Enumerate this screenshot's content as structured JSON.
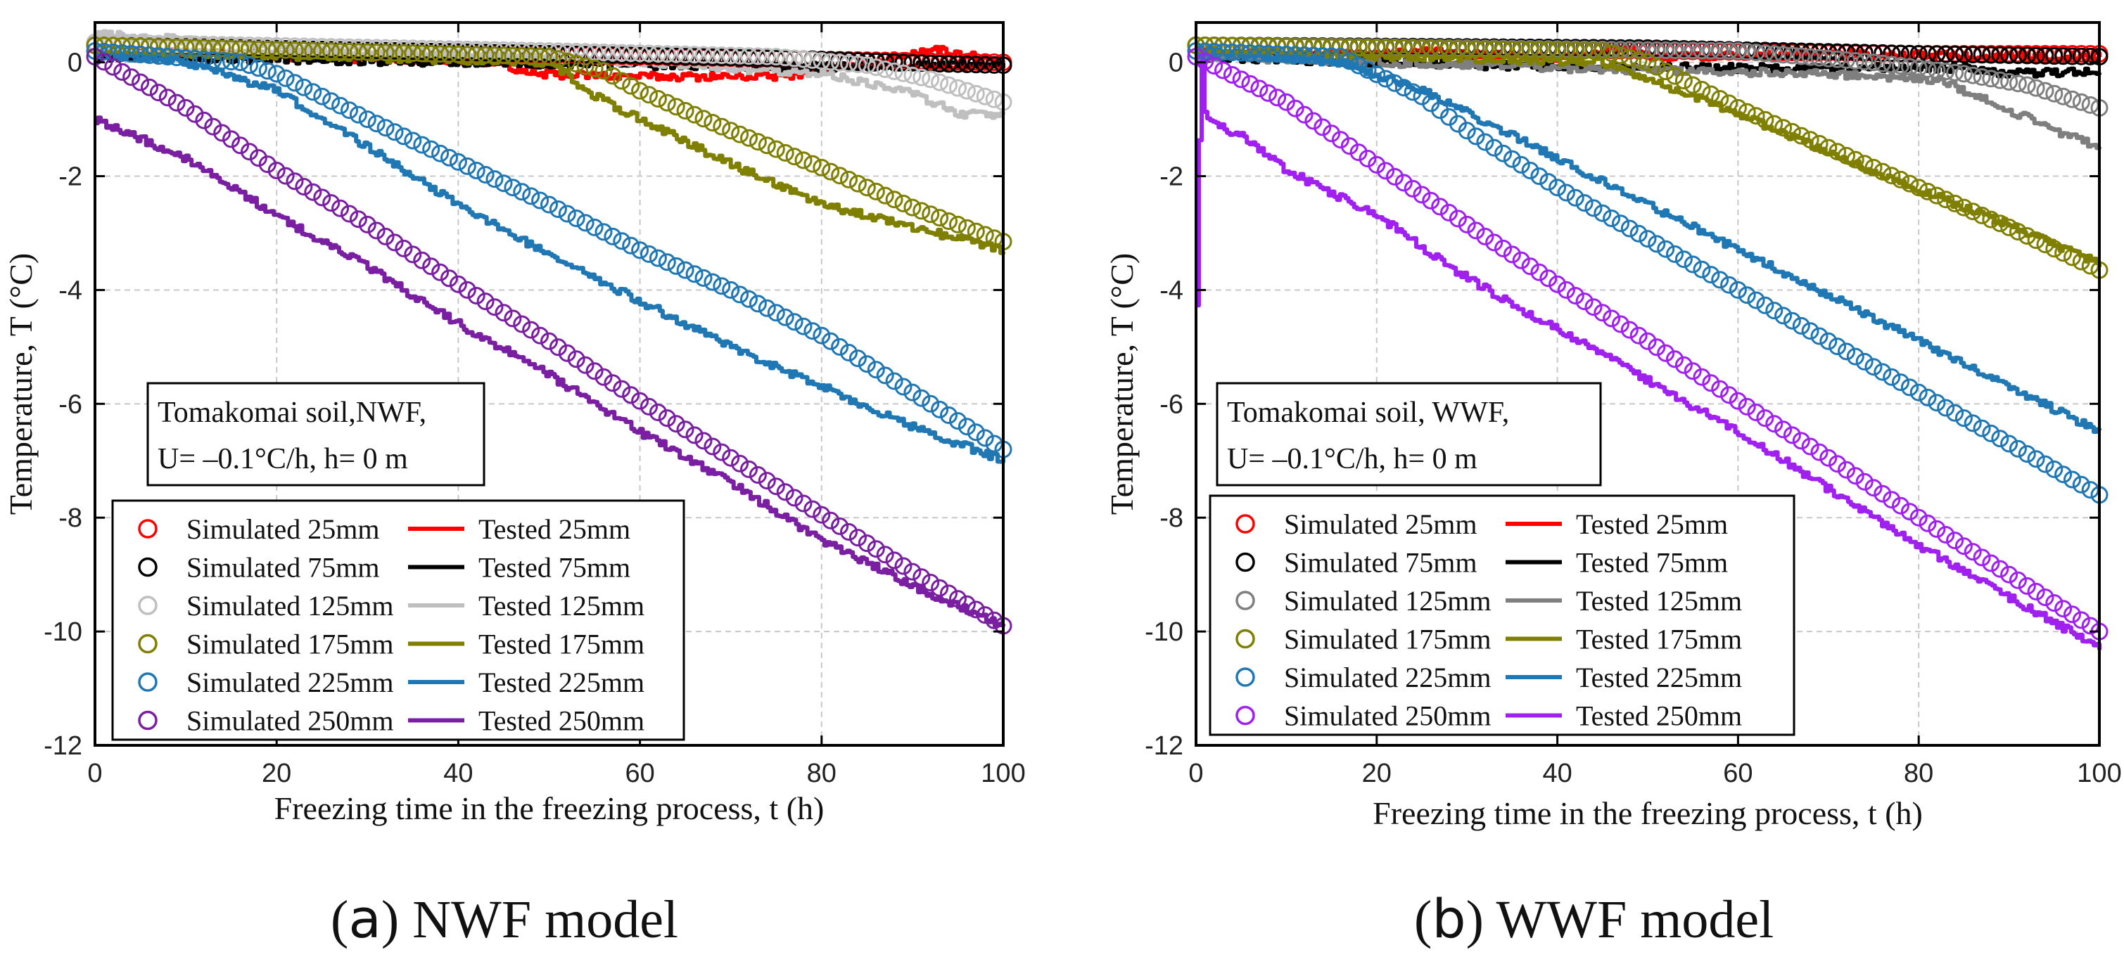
{
  "caption_a": {
    "letter": "a",
    "text": " NWF model"
  },
  "caption_b": {
    "letter": "b",
    "text": " WWF model"
  },
  "chart_data": [
    {
      "type": "line",
      "panel": "a",
      "xlabel": "Freezing time in the freezing process, t (h)",
      "ylabel": "Temperature, T (°C)",
      "xlim": [
        0,
        100
      ],
      "ylim": [
        -12,
        0.7
      ],
      "xticks": [
        0,
        20,
        40,
        60,
        80,
        100
      ],
      "yticks": [
        -12,
        -10,
        -8,
        -6,
        -4,
        -2,
        0
      ],
      "grid": true,
      "annotation": [
        "Tomakomai soil,NWF,",
        "U= –0.1°C/h, h= 0 m"
      ],
      "legend_position": "bottom-left",
      "series": [
        {
          "depth": "25mm",
          "color": "#ff0000",
          "sim_label": "Simulated 25mm",
          "test_label": "Tested 25mm",
          "simulated": [
            [
              0,
              0.3
            ],
            [
              60,
              0.1
            ],
            [
              80,
              0.05
            ],
            [
              100,
              0.0
            ]
          ],
          "tested": [
            [
              0,
              0.2
            ],
            [
              45,
              0.0
            ],
            [
              47,
              -0.2
            ],
            [
              60,
              -0.25
            ],
            [
              75,
              -0.25
            ],
            [
              85,
              -0.05
            ],
            [
              88,
              0.1
            ],
            [
              92,
              0.25
            ],
            [
              97,
              0.1
            ],
            [
              100,
              0.0
            ]
          ]
        },
        {
          "depth": "75mm",
          "color": "#000000",
          "sim_label": "Simulated 75mm",
          "test_label": "Tested 75mm",
          "simulated": [
            [
              0,
              0.3
            ],
            [
              50,
              0.15
            ],
            [
              80,
              0.05
            ],
            [
              92,
              -0.02
            ],
            [
              100,
              -0.05
            ]
          ],
          "tested": [
            [
              0,
              0.1
            ],
            [
              40,
              0.0
            ],
            [
              60,
              -0.05
            ],
            [
              80,
              -0.08
            ],
            [
              100,
              -0.05
            ]
          ]
        },
        {
          "depth": "125mm",
          "color": "#bfbfbf",
          "sim_label": "Simulated 125mm",
          "test_label": "Tested 125mm",
          "simulated": [
            [
              0,
              0.35
            ],
            [
              50,
              0.2
            ],
            [
              75,
              0.1
            ],
            [
              85,
              -0.05
            ],
            [
              92,
              -0.3
            ],
            [
              100,
              -0.7
            ]
          ],
          "tested": [
            [
              0,
              0.5
            ],
            [
              30,
              0.2
            ],
            [
              60,
              0.0
            ],
            [
              80,
              -0.2
            ],
            [
              90,
              -0.55
            ],
            [
              95,
              -0.9
            ],
            [
              100,
              -0.95
            ]
          ]
        },
        {
          "depth": "175mm",
          "color": "#7f7f00",
          "sim_label": "Simulated 175mm",
          "test_label": "Tested 175mm",
          "simulated": [
            [
              0,
              0.3
            ],
            [
              50,
              0.1
            ],
            [
              56,
              -0.15
            ],
            [
              60,
              -0.5
            ],
            [
              70,
              -1.2
            ],
            [
              80,
              -1.85
            ],
            [
              90,
              -2.55
            ],
            [
              100,
              -3.15
            ]
          ],
          "tested": [
            [
              0,
              0.2
            ],
            [
              50,
              0.0
            ],
            [
              55,
              -0.6
            ],
            [
              60,
              -1.0
            ],
            [
              70,
              -1.8
            ],
            [
              80,
              -2.5
            ],
            [
              90,
              -2.9
            ],
            [
              100,
              -3.3
            ]
          ]
        },
        {
          "depth": "225mm",
          "color": "#1f77b4",
          "sim_label": "Simulated 225mm",
          "test_label": "Tested 225mm",
          "simulated": [
            [
              0,
              0.2
            ],
            [
              16,
              0.0
            ],
            [
              20,
              -0.2
            ],
            [
              30,
              -1.0
            ],
            [
              40,
              -1.75
            ],
            [
              50,
              -2.5
            ],
            [
              60,
              -3.3
            ],
            [
              70,
              -4.0
            ],
            [
              80,
              -4.8
            ],
            [
              90,
              -5.8
            ],
            [
              100,
              -6.8
            ]
          ],
          "tested": [
            [
              0,
              0.2
            ],
            [
              10,
              0.0
            ],
            [
              20,
              -0.5
            ],
            [
              30,
              -1.5
            ],
            [
              40,
              -2.5
            ],
            [
              50,
              -3.4
            ],
            [
              60,
              -4.2
            ],
            [
              70,
              -5.0
            ],
            [
              80,
              -5.7
            ],
            [
              90,
              -6.4
            ],
            [
              100,
              -7.0
            ]
          ]
        },
        {
          "depth": "250mm",
          "color": "#7a1fa2",
          "sim_label": "Simulated 250mm",
          "test_label": "Tested 250mm",
          "simulated": [
            [
              0,
              0.1
            ],
            [
              10,
              -0.8
            ],
            [
              20,
              -1.9
            ],
            [
              30,
              -2.85
            ],
            [
              40,
              -3.9
            ],
            [
              50,
              -4.9
            ],
            [
              60,
              -5.95
            ],
            [
              70,
              -6.95
            ],
            [
              80,
              -7.95
            ],
            [
              90,
              -8.95
            ],
            [
              100,
              -9.9
            ]
          ],
          "tested": [
            [
              0,
              -1.0
            ],
            [
              10,
              -1.7
            ],
            [
              20,
              -2.7
            ],
            [
              30,
              -3.6
            ],
            [
              40,
              -4.6
            ],
            [
              50,
              -5.5
            ],
            [
              60,
              -6.5
            ],
            [
              70,
              -7.4
            ],
            [
              80,
              -8.4
            ],
            [
              90,
              -9.2
            ],
            [
              100,
              -9.9
            ]
          ]
        }
      ]
    },
    {
      "type": "line",
      "panel": "b",
      "xlabel": "Freezing time in the freezing process, t (h)",
      "ylabel": "Temperature, T (°C)",
      "xlim": [
        0,
        100
      ],
      "ylim": [
        -12,
        0.7
      ],
      "xticks": [
        0,
        20,
        40,
        60,
        80,
        100
      ],
      "yticks": [
        -12,
        -10,
        -8,
        -6,
        -4,
        -2,
        0
      ],
      "grid": true,
      "annotation": [
        "Tomakomai soil, WWF,",
        "U= –0.1°C/h, h= 0 m"
      ],
      "legend_position": "bottom-left",
      "series": [
        {
          "depth": "25mm",
          "color": "#ff0000",
          "sim_label": "Simulated 25mm",
          "test_label": "Tested 25mm",
          "simulated": [
            [
              0,
              0.3
            ],
            [
              50,
              0.2
            ],
            [
              80,
              0.15
            ],
            [
              100,
              0.15
            ]
          ],
          "tested": [
            [
              0,
              0.2
            ],
            [
              10,
              0.1
            ],
            [
              25,
              0.2
            ],
            [
              40,
              0.05
            ],
            [
              47,
              0.25
            ],
            [
              50,
              0.1
            ],
            [
              70,
              0.15
            ],
            [
              90,
              0.1
            ],
            [
              100,
              0.1
            ]
          ]
        },
        {
          "depth": "75mm",
          "color": "#000000",
          "sim_label": "Simulated 75mm",
          "test_label": "Tested 75mm",
          "simulated": [
            [
              0,
              0.3
            ],
            [
              50,
              0.25
            ],
            [
              80,
              0.15
            ],
            [
              100,
              0.1
            ]
          ],
          "tested": [
            [
              0,
              0.1
            ],
            [
              30,
              -0.05
            ],
            [
              60,
              -0.1
            ],
            [
              85,
              -0.1
            ],
            [
              90,
              -0.2
            ],
            [
              100,
              -0.15
            ]
          ]
        },
        {
          "depth": "125mm",
          "color": "#7f7f7f",
          "sim_label": "Simulated 125mm",
          "test_label": "Tested 125mm",
          "simulated": [
            [
              0,
              0.3
            ],
            [
              60,
              0.2
            ],
            [
              75,
              0.0
            ],
            [
              85,
              -0.2
            ],
            [
              92,
              -0.4
            ],
            [
              100,
              -0.8
            ]
          ],
          "tested": [
            [
              0,
              0.1
            ],
            [
              40,
              -0.1
            ],
            [
              70,
              -0.2
            ],
            [
              82,
              -0.3
            ],
            [
              88,
              -0.7
            ],
            [
              95,
              -1.2
            ],
            [
              100,
              -1.5
            ]
          ]
        },
        {
          "depth": "175mm",
          "color": "#7f7f00",
          "sim_label": "Simulated 175mm",
          "test_label": "Tested 175mm",
          "simulated": [
            [
              0,
              0.3
            ],
            [
              45,
              0.2
            ],
            [
              50,
              0.0
            ],
            [
              55,
              -0.4
            ],
            [
              60,
              -0.8
            ],
            [
              70,
              -1.5
            ],
            [
              80,
              -2.2
            ],
            [
              90,
              -2.9
            ],
            [
              100,
              -3.65
            ]
          ],
          "tested": [
            [
              0,
              0.2
            ],
            [
              45,
              0.0
            ],
            [
              50,
              -0.3
            ],
            [
              55,
              -0.6
            ],
            [
              60,
              -0.9
            ],
            [
              70,
              -1.6
            ],
            [
              80,
              -2.25
            ],
            [
              90,
              -2.85
            ],
            [
              100,
              -3.55
            ]
          ]
        },
        {
          "depth": "225mm",
          "color": "#1f77b4",
          "sim_label": "Simulated 225mm",
          "test_label": "Tested 225mm",
          "simulated": [
            [
              0,
              0.2
            ],
            [
              16,
              0.1
            ],
            [
              25,
              -0.6
            ],
            [
              30,
              -1.2
            ],
            [
              40,
              -2.2
            ],
            [
              50,
              -3.1
            ],
            [
              60,
              -4.0
            ],
            [
              70,
              -4.9
            ],
            [
              80,
              -5.8
            ],
            [
              90,
              -6.7
            ],
            [
              100,
              -7.6
            ]
          ],
          "tested": [
            [
              0,
              0.2
            ],
            [
              16,
              0.0
            ],
            [
              25,
              -0.5
            ],
            [
              30,
              -0.9
            ],
            [
              40,
              -1.7
            ],
            [
              50,
              -2.5
            ],
            [
              60,
              -3.3
            ],
            [
              70,
              -4.1
            ],
            [
              80,
              -4.9
            ],
            [
              90,
              -5.7
            ],
            [
              100,
              -6.5
            ]
          ]
        },
        {
          "depth": "250mm",
          "color": "#a020f0",
          "sim_label": "Simulated 250mm",
          "test_label": "Tested 250mm",
          "simulated": [
            [
              0,
              0.1
            ],
            [
              10,
              -0.7
            ],
            [
              20,
              -1.8
            ],
            [
              30,
              -2.85
            ],
            [
              40,
              -3.9
            ],
            [
              50,
              -4.9
            ],
            [
              60,
              -5.95
            ],
            [
              70,
              -6.95
            ],
            [
              80,
              -8.0
            ],
            [
              90,
              -9.0
            ],
            [
              100,
              -10.0
            ]
          ],
          "tested": [
            [
              0,
              -4.2
            ],
            [
              0.5,
              0.3
            ],
            [
              1,
              -1.0
            ],
            [
              5,
              -1.3
            ],
            [
              10,
              -1.9
            ],
            [
              20,
              -2.7
            ],
            [
              30,
              -3.8
            ],
            [
              40,
              -4.7
            ],
            [
              50,
              -5.6
            ],
            [
              60,
              -6.5
            ],
            [
              70,
              -7.5
            ],
            [
              80,
              -8.5
            ],
            [
              90,
              -9.4
            ],
            [
              100,
              -10.3
            ]
          ]
        }
      ]
    }
  ]
}
